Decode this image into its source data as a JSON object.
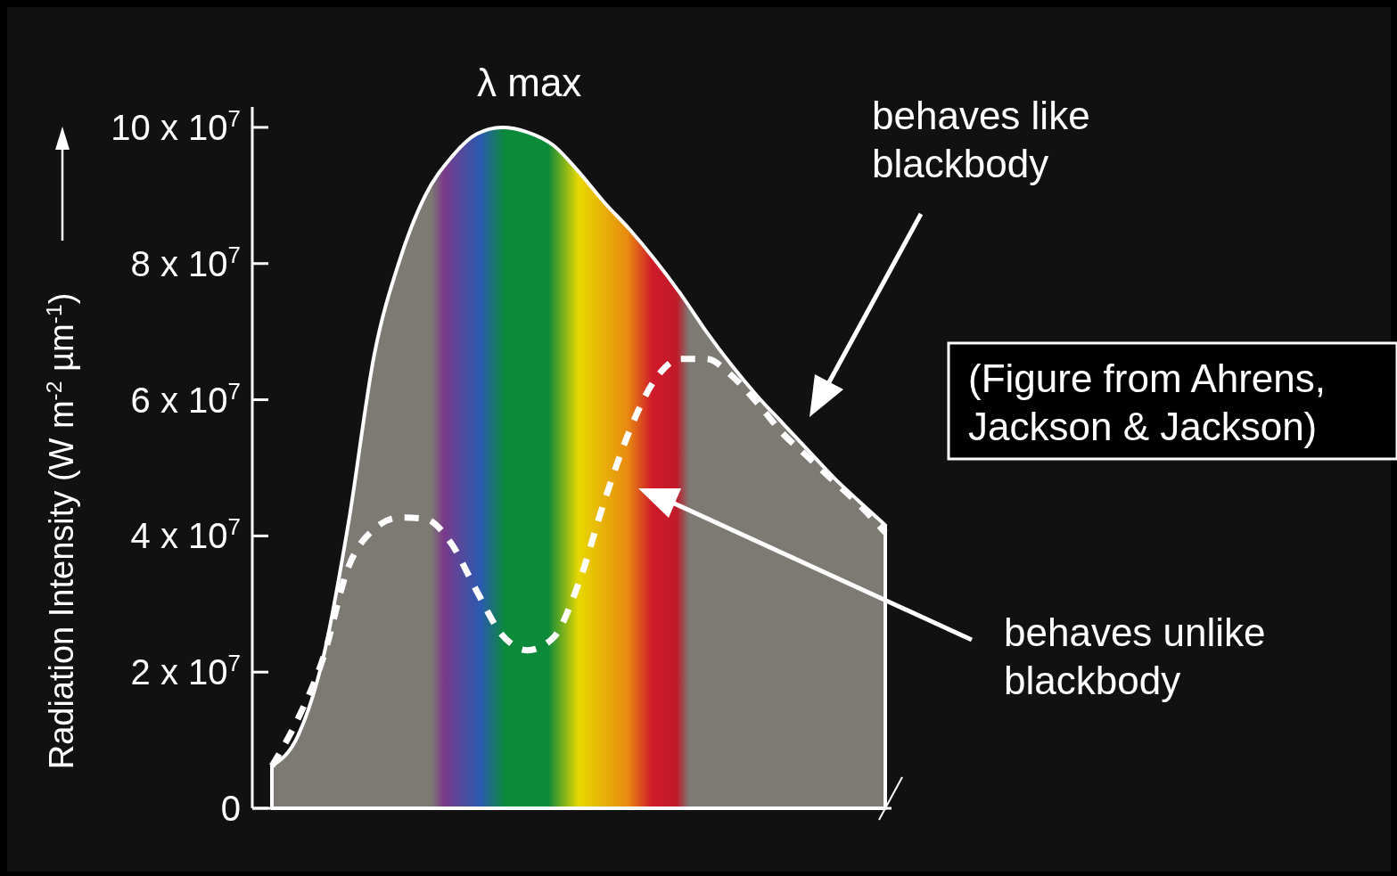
{
  "chart_data": {
    "type": "line",
    "ylabel": "Radiation Intensity (W m$^{-2}$  µm$^{-1}$)",
    "categories": [
      null,
      null,
      null,
      null,
      null,
      null,
      null,
      null,
      null,
      null,
      null,
      null,
      null,
      null,
      null,
      null,
      null,
      null,
      null,
      null,
      null,
      null,
      null,
      null,
      null
    ],
    "ylim": [
      0,
      103000000
    ],
    "yticks": [
      0,
      {
        "value": 20000000,
        "label": "2 x 10$^{7}$"
      },
      {
        "value": 40000000,
        "label": "4 x 10$^{7}$"
      },
      {
        "value": 60000000,
        "label": "6 x 10$^{7}$"
      },
      {
        "value": 80000000,
        "label": "8 x 10$^{7}$"
      },
      {
        "value": 100000000,
        "label": "10 x 10$^{7}$"
      }
    ],
    "series": [
      {
        "type": "area",
        "color": "#ffffff",
        "line_style": "solid",
        "values": [
          6200000,
          10500000,
          22000000,
          42000000,
          66500000,
          80500000,
          90000000,
          95500000,
          99000000,
          100000000,
          99300000,
          97400000,
          93500000,
          89000000,
          85000000,
          80500000,
          75500000,
          70000000,
          65000000,
          60500000,
          56500000,
          52500000,
          48500000,
          45000000,
          41600000
        ]
      },
      {
        "type": "line",
        "color": "#ffffff",
        "line_style": "dashed",
        "values": [
          6200000,
          13000000,
          22000000,
          35500000,
          41000000,
          42700000,
          42500000,
          39000000,
          32000000,
          25500000,
          23200000,
          25000000,
          33000000,
          45000000,
          55500000,
          63000000,
          66000000,
          66000000,
          63500000,
          59500000,
          55000000,
          51500000,
          48000000,
          44500000,
          40500000
        ]
      }
    ],
    "annotations": [
      "λ max",
      "behaves like blackbody",
      "behaves unlike blackbody",
      "(Figure from Ahrens, Jackson & Jackson)"
    ],
    "grid": false,
    "marker": "none"
  }
}
